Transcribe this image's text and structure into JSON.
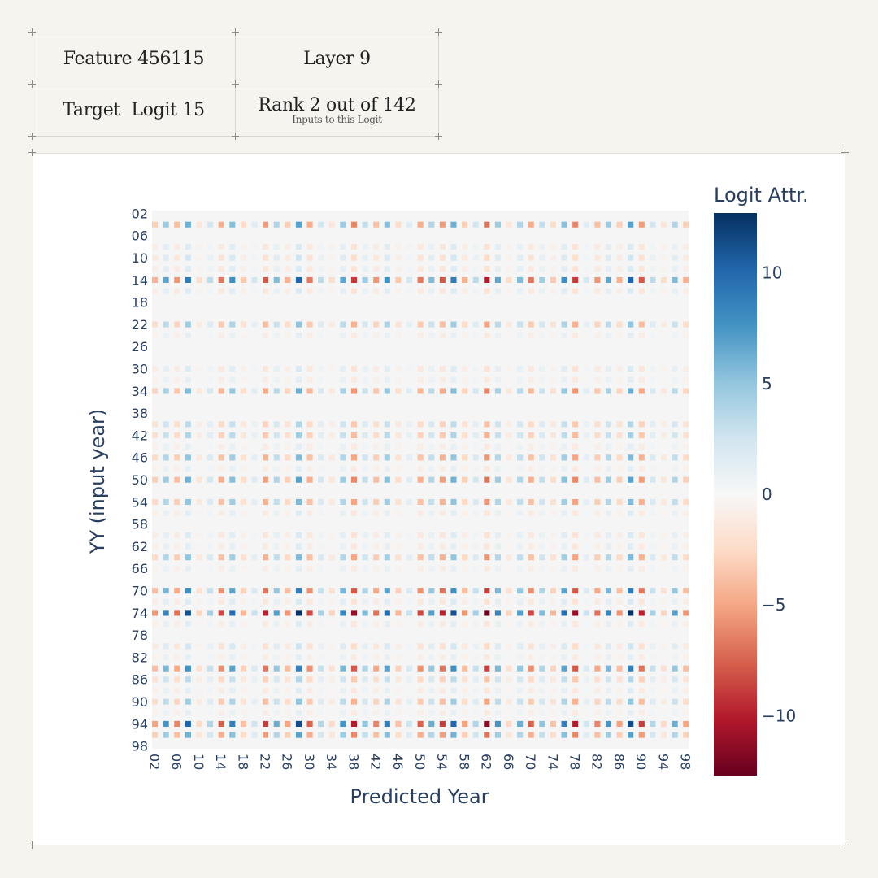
{
  "info": {
    "feature": "Feature 456115",
    "layer": "Layer 9",
    "target": "Target  Logit 15",
    "rank": "Rank 2 out of 142",
    "rank_sub": "Inputs to this Logit"
  },
  "colors": {
    "page_bg": "#f5f4ef",
    "card_bg": "#ffffff",
    "plot_bg": "#f5f5f5",
    "text": "#2a3f5f",
    "colorscale": [
      "#67001f",
      "#b2182b",
      "#d6604d",
      "#f4a582",
      "#fddbc7",
      "#f7f7f7",
      "#d1e5f0",
      "#92c5de",
      "#4393c3",
      "#2166ac",
      "#053061"
    ]
  },
  "chart_data": {
    "type": "heatmap",
    "xlabel": "Predicted Year",
    "ylabel": "YY (input year)",
    "colorbar_title": "Logit Attr.",
    "zlim": [
      -12.7,
      12.7
    ],
    "colorbar_ticks": [
      10,
      5,
      0,
      -5,
      -10
    ],
    "colorbar_tick_labels": [
      "10",
      "5",
      "0",
      "−5",
      "−10"
    ],
    "x_range": [
      2,
      98
    ],
    "y_range": [
      2,
      98
    ],
    "x_ticks": [
      "02",
      "06",
      "10",
      "14",
      "18",
      "22",
      "26",
      "30",
      "34",
      "38",
      "42",
      "46",
      "50",
      "54",
      "58",
      "62",
      "66",
      "70",
      "74",
      "78",
      "82",
      "86",
      "90",
      "94",
      "98"
    ],
    "y_ticks": [
      "02",
      "06",
      "10",
      "14",
      "18",
      "22",
      "26",
      "30",
      "34",
      "38",
      "42",
      "46",
      "50",
      "54",
      "58",
      "62",
      "66",
      "70",
      "74",
      "78",
      "82",
      "86",
      "90",
      "94",
      "98"
    ],
    "row_strength": {
      "04": 0.55,
      "14": 0.8,
      "22": 0.4,
      "34": 0.5,
      "40": 0.3,
      "42": 0.35,
      "46": 0.45,
      "50": 0.55,
      "54": 0.45,
      "64": 0.45,
      "70": 0.7,
      "74": 1.0,
      "84": 0.7,
      "86": 0.3,
      "90": 0.4,
      "94": 0.9,
      "96": 0.55,
      "08": 0.15,
      "10": 0.2,
      "12": 0.15,
      "16": 0.15,
      "24": 0.1,
      "30": 0.15,
      "32": 0.1,
      "44": 0.1,
      "48": 0.1,
      "56": 0.12,
      "60": 0.15,
      "62": 0.12,
      "66": 0.1,
      "72": 0.15,
      "76": 0.12,
      "80": 0.2,
      "82": 0.1,
      "88": 0.12,
      "92": 0.1
    },
    "column_pattern": [
      -4,
      6,
      -5,
      8,
      -2,
      3,
      -6,
      7,
      -3,
      2,
      -7,
      5,
      -4,
      9,
      -6,
      3,
      -2,
      6,
      -8,
      4,
      -5,
      7,
      -3,
      2,
      -6,
      5,
      -7,
      8,
      -4,
      3,
      -9,
      6,
      -2,
      5,
      -6,
      4,
      -3,
      7,
      -8,
      2,
      -5,
      6,
      -4,
      9,
      -7,
      3,
      -2,
      5
    ]
  }
}
